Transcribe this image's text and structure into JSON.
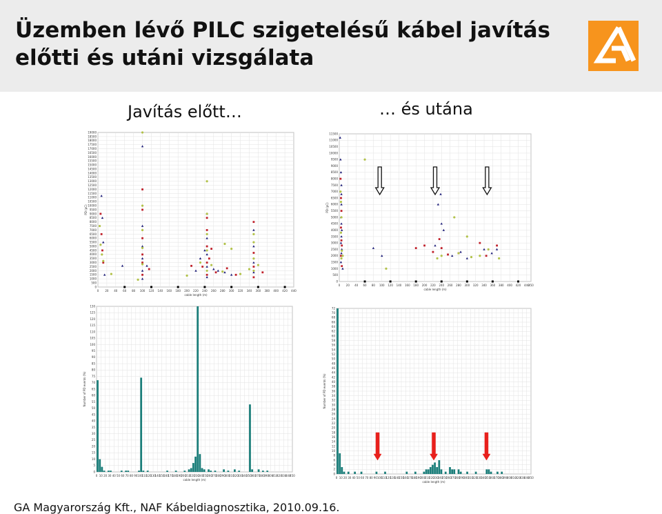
{
  "header": {
    "title_line1": "Üzemben lévő PILC szigetelésű kábel javítás",
    "title_line2": "előtti és utáni vizsgálata",
    "background": "#ececec",
    "logo_color": "#f7941d",
    "logo_icon": "ga-logo-icon"
  },
  "captions": {
    "before": "Javítás előtt…",
    "after": "… és utána"
  },
  "footer": {
    "text": "GA Magyarország Kft., NAF Kábeldiagnosztika, 2010.09.16."
  },
  "annotations": {
    "hollow_arrow_icon": "hollow-down-arrow-icon",
    "red_arrow_icon": "red-up-arrow-icon",
    "red_arrow_color": "#e8201c",
    "positions_m": [
      95,
      225,
      347
    ]
  },
  "chart_data": [
    {
      "id": "before-scatter",
      "type": "scatter",
      "xlabel": "cable length (m)",
      "ylabel": "PD (pC)",
      "xlim": [
        0,
        440
      ],
      "ylim": [
        0,
        19000
      ],
      "xticks": [
        0,
        20,
        40,
        60,
        80,
        100,
        120,
        140,
        160,
        180,
        200,
        220,
        240,
        260,
        280,
        300,
        320,
        340,
        360,
        380,
        400,
        420,
        440
      ],
      "ytick_step": 500,
      "grid": true,
      "series": [
        {
          "marker": "triangle",
          "color": "#20207a",
          "points": [
            [
              8,
              11200
            ],
            [
              10,
              8500
            ],
            [
              12,
              5500
            ],
            [
              15,
              1500
            ],
            [
              55,
              2600
            ],
            [
              100,
              17300
            ],
            [
              100,
              7500
            ],
            [
              100,
              5000
            ],
            [
              100,
              3500
            ],
            [
              100,
              2000
            ],
            [
              100,
              1000
            ],
            [
              245,
              9000
            ],
            [
              245,
              6000
            ],
            [
              245,
              4000
            ],
            [
              245,
              2500
            ],
            [
              245,
              1200
            ],
            [
              260,
              2200
            ],
            [
              270,
              2000
            ],
            [
              285,
              1800
            ],
            [
              300,
              1500
            ],
            [
              350,
              7000
            ],
            [
              350,
              5000
            ],
            [
              350,
              3000
            ],
            [
              350,
              1800
            ],
            [
              110,
              2600
            ],
            [
              220,
              2000
            ],
            [
              230,
              3500
            ],
            [
              240,
              4500
            ]
          ]
        },
        {
          "marker": "square",
          "color": "#c0202a",
          "points": [
            [
              6,
              9000
            ],
            [
              8,
              6500
            ],
            [
              10,
              4500
            ],
            [
              12,
              3000
            ],
            [
              100,
              12000
            ],
            [
              100,
              9500
            ],
            [
              100,
              6000
            ],
            [
              100,
              4000
            ],
            [
              100,
              3000
            ],
            [
              100,
              1500
            ],
            [
              245,
              8500
            ],
            [
              245,
              7000
            ],
            [
              245,
              5000
            ],
            [
              245,
              3000
            ],
            [
              245,
              1500
            ],
            [
              235,
              2500
            ],
            [
              250,
              3500
            ],
            [
              265,
              1800
            ],
            [
              290,
              2300
            ],
            [
              310,
              1500
            ],
            [
              350,
              8000
            ],
            [
              350,
              4200
            ],
            [
              350,
              2500
            ],
            [
              350,
              1200
            ],
            [
              115,
              2200
            ],
            [
              210,
              2600
            ],
            [
              255,
              4700
            ],
            [
              370,
              1800
            ]
          ]
        },
        {
          "marker": "circle",
          "color": "#b2c24a",
          "points": [
            [
              4,
              7500
            ],
            [
              6,
              5200
            ],
            [
              9,
              4000
            ],
            [
              12,
              3200
            ],
            [
              30,
              1600
            ],
            [
              100,
              19000
            ],
            [
              100,
              10000
            ],
            [
              100,
              7000
            ],
            [
              100,
              4800
            ],
            [
              100,
              2800
            ],
            [
              245,
              13000
            ],
            [
              245,
              9000
            ],
            [
              245,
              6500
            ],
            [
              245,
              4500
            ],
            [
              245,
              2000
            ],
            [
              230,
              3000
            ],
            [
              255,
              2700
            ],
            [
              280,
              1900
            ],
            [
              320,
              1600
            ],
            [
              360,
              2700
            ],
            [
              350,
              6500
            ],
            [
              350,
              5500
            ],
            [
              350,
              3500
            ],
            [
              350,
              2000
            ],
            [
              90,
              900
            ],
            [
              200,
              1400
            ],
            [
              285,
              5300
            ],
            [
              300,
              4700
            ],
            [
              340,
              2200
            ]
          ]
        }
      ]
    },
    {
      "id": "after-scatter",
      "type": "scatter",
      "xlabel": "cable length (m)",
      "ylabel": "PD (pC)",
      "xlim": [
        0,
        450
      ],
      "ylim": [
        0,
        11500
      ],
      "xticks": [
        0,
        20,
        40,
        60,
        80,
        100,
        120,
        140,
        160,
        180,
        200,
        220,
        240,
        260,
        280,
        300,
        320,
        340,
        360,
        380,
        400,
        420,
        440,
        450
      ],
      "ytick_step": 500,
      "grid": true,
      "series": [
        {
          "marker": "triangle",
          "color": "#20207a",
          "points": [
            [
              2,
              11200
            ],
            [
              3,
              9500
            ],
            [
              4,
              8500
            ],
            [
              5,
              7500
            ],
            [
              5,
              6800
            ],
            [
              5,
              6000
            ],
            [
              4,
              5000
            ],
            [
              5,
              4500
            ],
            [
              6,
              4000
            ],
            [
              5,
              3500
            ],
            [
              4,
              3000
            ],
            [
              6,
              2500
            ],
            [
              5,
              2200
            ],
            [
              4,
              1500
            ],
            [
              8,
              1000
            ],
            [
              80,
              2600
            ],
            [
              100,
              2000
            ],
            [
              225,
              2800
            ],
            [
              232,
              6000
            ],
            [
              238,
              6800
            ],
            [
              240,
              4500
            ],
            [
              245,
              4000
            ],
            [
              265,
              2000
            ],
            [
              285,
              2300
            ],
            [
              300,
              1800
            ],
            [
              340,
              2500
            ],
            [
              358,
              2200
            ],
            [
              370,
              2500
            ]
          ]
        },
        {
          "marker": "square",
          "color": "#c0202a",
          "points": [
            [
              3,
              8000
            ],
            [
              4,
              6500
            ],
            [
              5,
              5500
            ],
            [
              4,
              4200
            ],
            [
              5,
              3200
            ],
            [
              6,
              2800
            ],
            [
              4,
              2000
            ],
            [
              6,
              1200
            ],
            [
              180,
              2600
            ],
            [
              200,
              2800
            ],
            [
              220,
              2300
            ],
            [
              235,
              3300
            ],
            [
              240,
              2600
            ],
            [
              255,
              2100
            ],
            [
              280,
              2200
            ],
            [
              330,
              3000
            ],
            [
              345,
              2000
            ],
            [
              370,
              2800
            ]
          ]
        },
        {
          "marker": "circle",
          "color": "#b2c24a",
          "points": [
            [
              3,
              7000
            ],
            [
              4,
              6200
            ],
            [
              5,
              5000
            ],
            [
              4,
              3800
            ],
            [
              6,
              2400
            ],
            [
              5,
              1800
            ],
            [
              60,
              9500
            ],
            [
              8,
              2000
            ],
            [
              110,
              1000
            ],
            [
              230,
              1800
            ],
            [
              240,
              2000
            ],
            [
              270,
              5000
            ],
            [
              280,
              2200
            ],
            [
              300,
              3500
            ],
            [
              310,
              1900
            ],
            [
              330,
              2000
            ],
            [
              350,
              2500
            ],
            [
              375,
              1800
            ]
          ]
        }
      ]
    },
    {
      "id": "before-histogram",
      "type": "bar",
      "xlabel": "cable length (m)",
      "ylabel": "Number of PD events (%)",
      "xlim": [
        0,
        450
      ],
      "ylim": [
        0,
        130
      ],
      "xticks": [
        0,
        10,
        20,
        30,
        40,
        50,
        60,
        70,
        80,
        90,
        100,
        110,
        120,
        130,
        140,
        150,
        160,
        170,
        180,
        190,
        200,
        210,
        220,
        230,
        240,
        250,
        260,
        270,
        280,
        290,
        300,
        310,
        320,
        330,
        340,
        350,
        360,
        370,
        380,
        390,
        400,
        410,
        420,
        430,
        440,
        450
      ],
      "ytick_step": 5,
      "bin_width": 5,
      "bar_color": "#1a7e7a",
      "bins": [
        [
          0,
          72
        ],
        [
          5,
          10
        ],
        [
          10,
          4
        ],
        [
          15,
          1
        ],
        [
          25,
          1
        ],
        [
          30,
          1
        ],
        [
          55,
          1
        ],
        [
          65,
          1
        ],
        [
          70,
          1
        ],
        [
          95,
          1
        ],
        [
          100,
          74
        ],
        [
          105,
          1
        ],
        [
          115,
          1
        ],
        [
          160,
          1
        ],
        [
          180,
          1
        ],
        [
          200,
          1
        ],
        [
          210,
          2
        ],
        [
          215,
          3
        ],
        [
          220,
          7
        ],
        [
          225,
          12
        ],
        [
          230,
          130
        ],
        [
          235,
          14
        ],
        [
          240,
          3
        ],
        [
          245,
          2
        ],
        [
          255,
          2
        ],
        [
          260,
          1
        ],
        [
          270,
          1
        ],
        [
          290,
          2
        ],
        [
          300,
          1
        ],
        [
          315,
          2
        ],
        [
          325,
          1
        ],
        [
          350,
          53
        ],
        [
          355,
          2
        ],
        [
          370,
          2
        ],
        [
          380,
          1
        ],
        [
          390,
          1
        ]
      ]
    },
    {
      "id": "after-histogram",
      "type": "bar",
      "xlabel": "cable length (m)",
      "ylabel": "Number of PD events (%)",
      "xlim": [
        0,
        450
      ],
      "ylim": [
        0,
        72
      ],
      "xticks": [
        0,
        10,
        20,
        30,
        40,
        50,
        60,
        70,
        80,
        90,
        100,
        110,
        120,
        130,
        140,
        150,
        160,
        170,
        180,
        190,
        200,
        210,
        220,
        230,
        240,
        250,
        260,
        270,
        280,
        290,
        300,
        310,
        320,
        330,
        340,
        350,
        360,
        370,
        380,
        390,
        400,
        410,
        420,
        430,
        440,
        450
      ],
      "ytick_step": 2,
      "bin_width": 5,
      "bar_color": "#1a7e7a",
      "bins": [
        [
          0,
          72
        ],
        [
          5,
          9
        ],
        [
          10,
          3
        ],
        [
          15,
          1
        ],
        [
          25,
          1
        ],
        [
          40,
          1
        ],
        [
          55,
          1
        ],
        [
          90,
          1
        ],
        [
          110,
          1
        ],
        [
          160,
          1
        ],
        [
          180,
          1
        ],
        [
          200,
          1
        ],
        [
          205,
          2
        ],
        [
          210,
          2
        ],
        [
          215,
          3
        ],
        [
          220,
          4
        ],
        [
          225,
          5
        ],
        [
          230,
          3
        ],
        [
          235,
          6
        ],
        [
          240,
          2
        ],
        [
          250,
          1
        ],
        [
          260,
          3
        ],
        [
          265,
          2
        ],
        [
          270,
          2
        ],
        [
          280,
          2
        ],
        [
          285,
          1
        ],
        [
          300,
          1
        ],
        [
          320,
          1
        ],
        [
          345,
          2
        ],
        [
          350,
          2
        ],
        [
          355,
          1
        ],
        [
          370,
          1
        ],
        [
          380,
          1
        ]
      ]
    }
  ]
}
